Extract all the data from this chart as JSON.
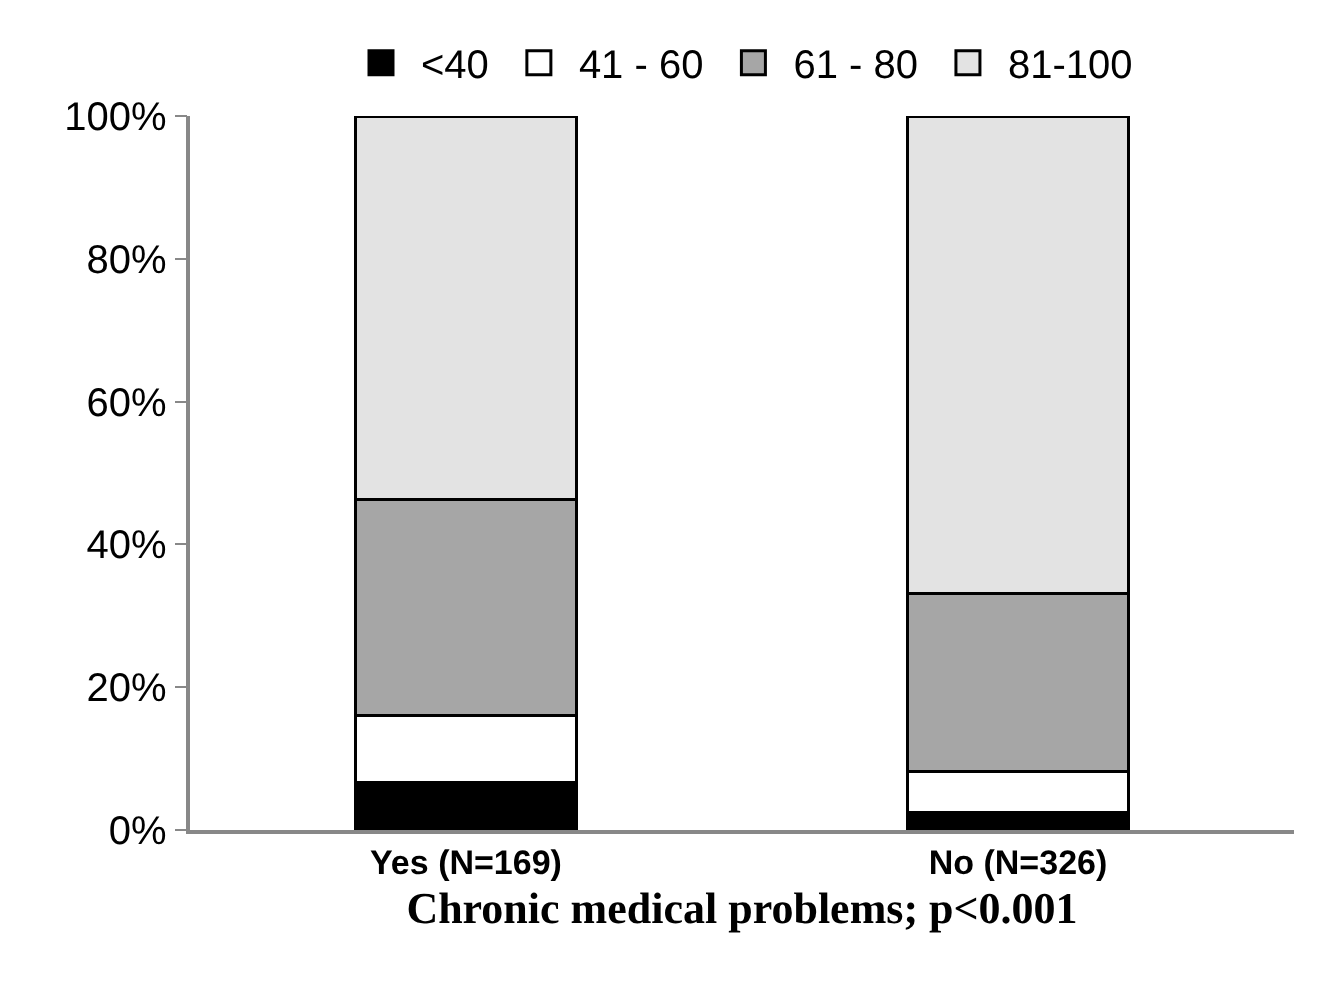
{
  "chart_data": {
    "type": "bar",
    "stacked": true,
    "categories": [
      "Yes (N=169)",
      "No (N=326)"
    ],
    "xlabel": "Chronic medical problems; p<0.001",
    "series": [
      {
        "name": "<40",
        "color": "#000000",
        "values": [
          6.7,
          2.5
        ]
      },
      {
        "name": "41 - 60",
        "color": "#ffffff",
        "values": [
          9.3,
          5.7
        ]
      },
      {
        "name": "61 - 80",
        "color": "#a6a6a6",
        "values": [
          30.3,
          24.9
        ]
      },
      {
        "name": "81-100",
        "color": "#e3e3e3",
        "values": [
          53.7,
          66.9
        ]
      }
    ],
    "ylim": [
      0,
      100
    ],
    "yticks": [
      {
        "value": 0,
        "label": "0%"
      },
      {
        "value": 20,
        "label": "20%"
      },
      {
        "value": 40,
        "label": "40%"
      },
      {
        "value": 60,
        "label": "60%"
      },
      {
        "value": 80,
        "label": "80%"
      },
      {
        "value": 100,
        "label": "100%"
      }
    ],
    "grid": false,
    "legend": "top"
  }
}
